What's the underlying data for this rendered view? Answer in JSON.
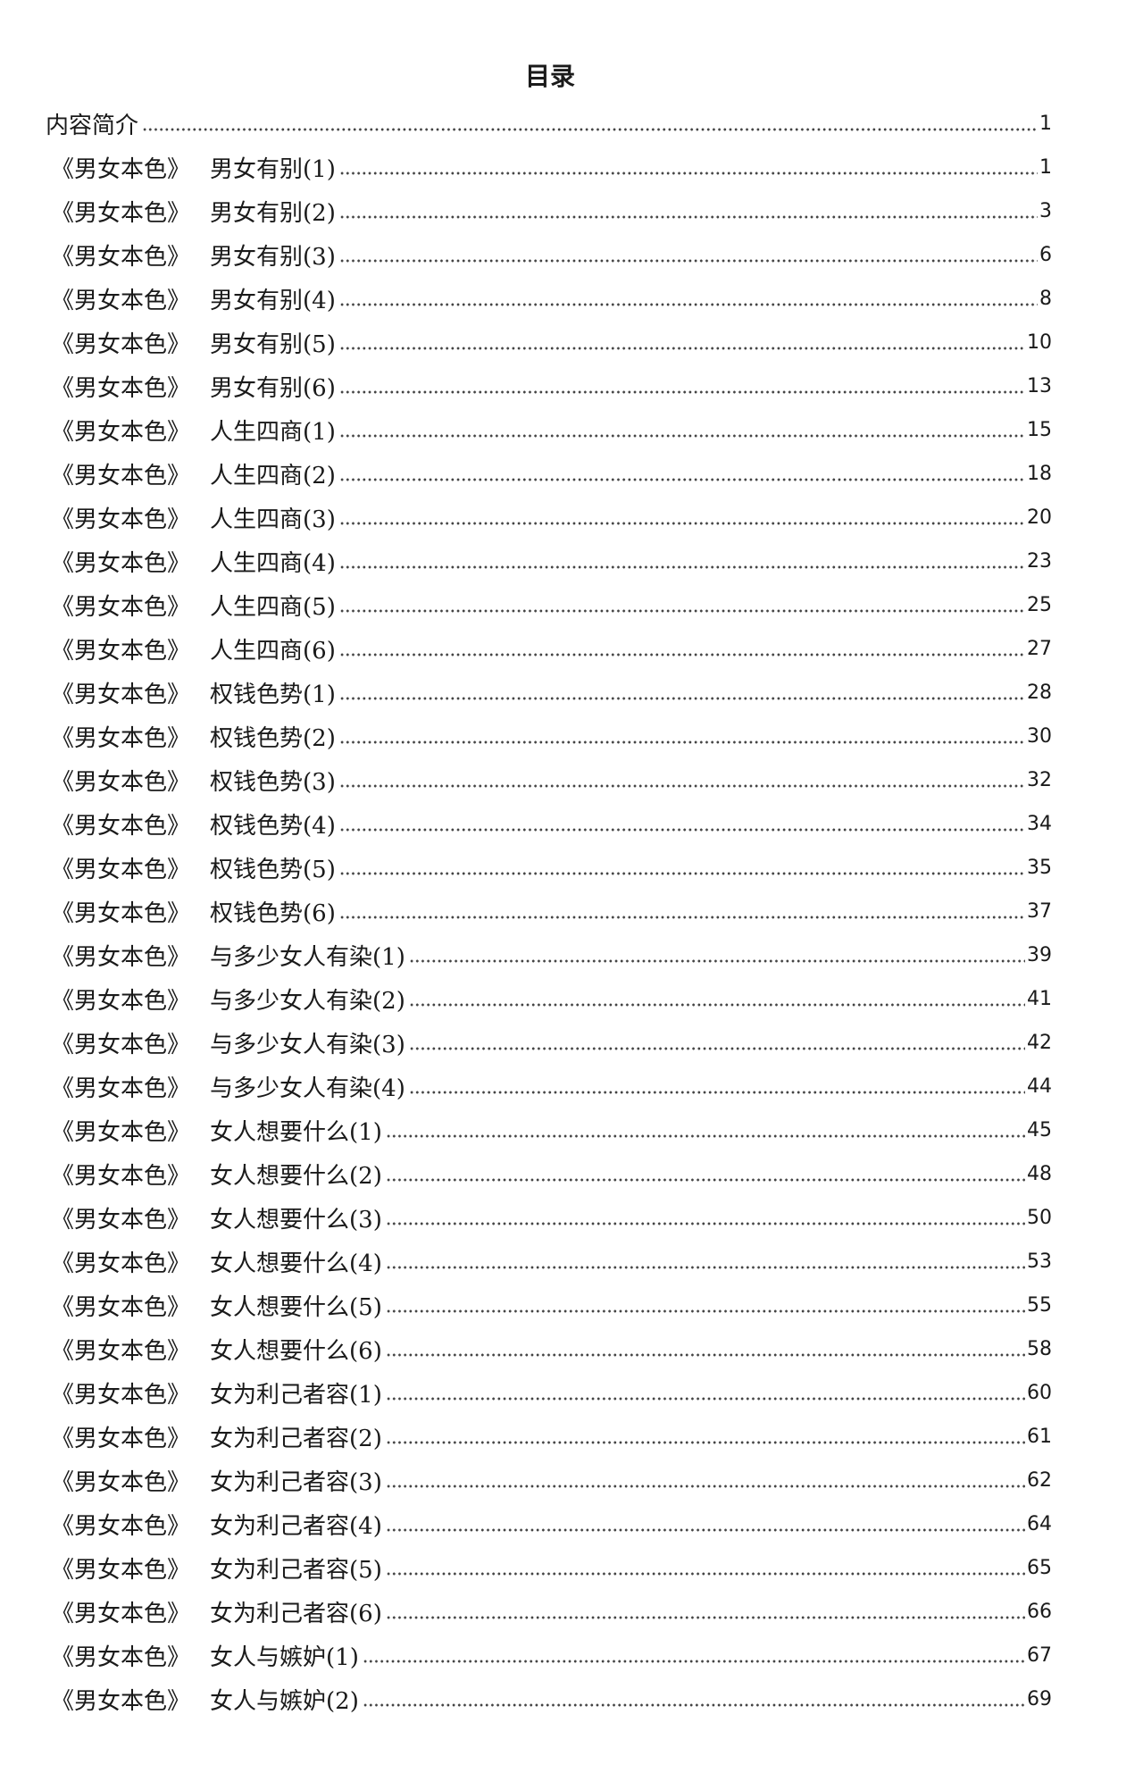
{
  "title": "目录",
  "intro": {
    "label": "内容简介",
    "page": "1"
  },
  "book": "《男女本色》",
  "entries": [
    {
      "chapter": "男女有别(1)",
      "page": "1"
    },
    {
      "chapter": "男女有别(2)",
      "page": "3"
    },
    {
      "chapter": "男女有别(3)",
      "page": "6"
    },
    {
      "chapter": "男女有别(4)",
      "page": "8"
    },
    {
      "chapter": "男女有别(5)",
      "page": "10"
    },
    {
      "chapter": "男女有别(6)",
      "page": "13"
    },
    {
      "chapter": "人生四商(1)",
      "page": "15"
    },
    {
      "chapter": "人生四商(2)",
      "page": "18"
    },
    {
      "chapter": "人生四商(3)",
      "page": "20"
    },
    {
      "chapter": "人生四商(4)",
      "page": "23"
    },
    {
      "chapter": "人生四商(5)",
      "page": "25"
    },
    {
      "chapter": "人生四商(6)",
      "page": "27"
    },
    {
      "chapter": "权钱色势(1)",
      "page": "28"
    },
    {
      "chapter": "权钱色势(2)",
      "page": "30"
    },
    {
      "chapter": "权钱色势(3)",
      "page": "32"
    },
    {
      "chapter": "权钱色势(4)",
      "page": "34"
    },
    {
      "chapter": "权钱色势(5)",
      "page": "35"
    },
    {
      "chapter": "权钱色势(6)",
      "page": "37"
    },
    {
      "chapter": "与多少女人有染(1)",
      "page": "39"
    },
    {
      "chapter": "与多少女人有染(2)",
      "page": "41"
    },
    {
      "chapter": "与多少女人有染(3)",
      "page": "42"
    },
    {
      "chapter": "与多少女人有染(4)",
      "page": "44"
    },
    {
      "chapter": "女人想要什么(1)",
      "page": "45"
    },
    {
      "chapter": "女人想要什么(2)",
      "page": "48"
    },
    {
      "chapter": "女人想要什么(3)",
      "page": "50"
    },
    {
      "chapter": "女人想要什么(4)",
      "page": "53"
    },
    {
      "chapter": "女人想要什么(5)",
      "page": "55"
    },
    {
      "chapter": "女人想要什么(6)",
      "page": "58"
    },
    {
      "chapter": "女为利己者容(1)",
      "page": "60"
    },
    {
      "chapter": "女为利己者容(2)",
      "page": "61"
    },
    {
      "chapter": "女为利己者容(3)",
      "page": "62"
    },
    {
      "chapter": "女为利己者容(4)",
      "page": "64"
    },
    {
      "chapter": "女为利己者容(5)",
      "page": "65"
    },
    {
      "chapter": "女为利己者容(6)",
      "page": "66"
    },
    {
      "chapter": "女人与嫉妒(1)",
      "page": "67"
    },
    {
      "chapter": "女人与嫉妒(2)",
      "page": "69"
    }
  ]
}
